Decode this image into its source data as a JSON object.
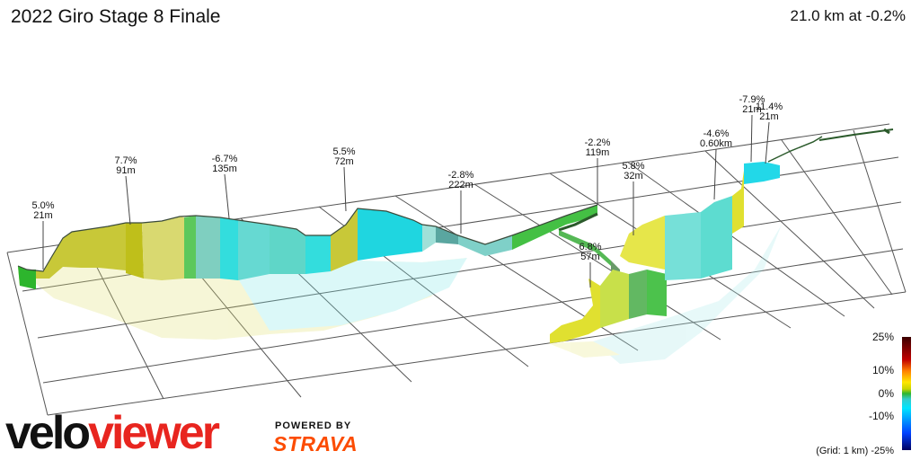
{
  "header": {
    "title": "2022 Giro Stage 8 Finale",
    "summary": "21.0 km at -0.2%"
  },
  "callouts": [
    {
      "grade": "5.0%",
      "length": "21m"
    },
    {
      "grade": "7.7%",
      "length": "91m"
    },
    {
      "grade": "-6.7%",
      "length": "135m"
    },
    {
      "grade": "5.5%",
      "length": "72m"
    },
    {
      "grade": "-2.8%",
      "length": "222m"
    },
    {
      "grade": "-2.2%",
      "length": "119m"
    },
    {
      "grade": "5.8%",
      "length": "32m"
    },
    {
      "grade": "6.8%",
      "length": "57m"
    },
    {
      "grade": "-4.6%",
      "length": "0.60km"
    },
    {
      "grade": "-7.9%",
      "length": "21m"
    },
    {
      "grade": "11.4%",
      "length": "21m"
    }
  ],
  "legend": {
    "labels": [
      "25%",
      "10%",
      "0%",
      "-10%",
      "-25%"
    ],
    "grid_note": "(Grid: 1 km)",
    "colors": {
      "steep_up": "#c00000",
      "up": "#ffe600",
      "flat": "#2db52d",
      "down": "#00e5ff",
      "steep_down": "#0040ff"
    }
  },
  "branding": {
    "logo_velo": "velo",
    "logo_viewer": "viewer",
    "powered_by": "POWERED BY",
    "strava": "STRAVA",
    "brand_colors": {
      "velo": "#111111",
      "viewer": "#e8251f",
      "strava": "#fc4c02"
    }
  }
}
